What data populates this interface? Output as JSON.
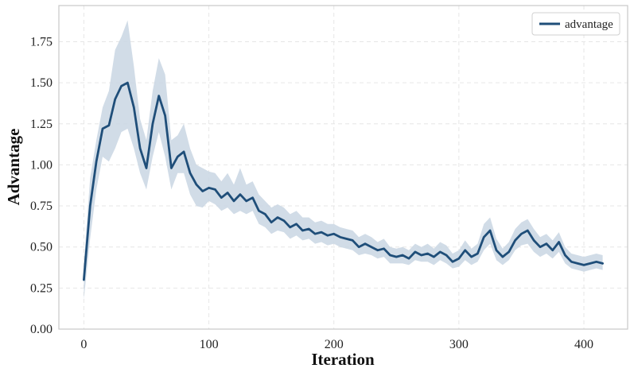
{
  "chart_data": {
    "type": "line",
    "xlabel": "Iteration",
    "ylabel": "Advantage",
    "xlim": [
      -20,
      435
    ],
    "ylim": [
      0,
      1.97
    ],
    "xticks": [
      0,
      100,
      200,
      300,
      400
    ],
    "yticks": [
      0.0,
      0.25,
      0.5,
      0.75,
      1.0,
      1.25,
      1.5,
      1.75
    ],
    "grid": true,
    "legend_position": "top-right",
    "colors": {
      "line": "#1f4e79",
      "band": "#c9d6e3"
    },
    "series": [
      {
        "name": "advantage",
        "x": [
          0,
          5,
          10,
          15,
          20,
          25,
          30,
          35,
          40,
          45,
          50,
          55,
          60,
          65,
          70,
          75,
          80,
          85,
          90,
          95,
          100,
          105,
          110,
          115,
          120,
          125,
          130,
          135,
          140,
          145,
          150,
          155,
          160,
          165,
          170,
          175,
          180,
          185,
          190,
          195,
          200,
          205,
          210,
          215,
          220,
          225,
          230,
          235,
          240,
          245,
          250,
          255,
          260,
          265,
          270,
          275,
          280,
          285,
          290,
          295,
          300,
          305,
          310,
          315,
          320,
          325,
          330,
          335,
          340,
          345,
          350,
          355,
          360,
          365,
          370,
          375,
          380,
          385,
          390,
          395,
          400,
          405,
          410,
          415
        ],
        "values": [
          0.3,
          0.75,
          1.02,
          1.22,
          1.24,
          1.4,
          1.48,
          1.5,
          1.35,
          1.1,
          0.98,
          1.25,
          1.42,
          1.3,
          0.98,
          1.05,
          1.08,
          0.95,
          0.88,
          0.84,
          0.86,
          0.85,
          0.8,
          0.83,
          0.78,
          0.82,
          0.78,
          0.8,
          0.72,
          0.7,
          0.65,
          0.68,
          0.66,
          0.62,
          0.64,
          0.6,
          0.61,
          0.58,
          0.59,
          0.57,
          0.58,
          0.56,
          0.55,
          0.54,
          0.5,
          0.52,
          0.5,
          0.48,
          0.49,
          0.45,
          0.44,
          0.45,
          0.43,
          0.47,
          0.45,
          0.46,
          0.44,
          0.47,
          0.45,
          0.41,
          0.43,
          0.48,
          0.44,
          0.46,
          0.56,
          0.6,
          0.48,
          0.44,
          0.47,
          0.54,
          0.58,
          0.6,
          0.54,
          0.5,
          0.52,
          0.48,
          0.53,
          0.45,
          0.41,
          0.4,
          0.39,
          0.4,
          0.41,
          0.4
        ],
        "lower": [
          0.18,
          0.55,
          0.85,
          1.05,
          1.02,
          1.1,
          1.2,
          1.22,
          1.1,
          0.95,
          0.85,
          1.05,
          1.2,
          1.05,
          0.85,
          0.95,
          0.95,
          0.82,
          0.75,
          0.74,
          0.78,
          0.76,
          0.72,
          0.74,
          0.7,
          0.72,
          0.7,
          0.72,
          0.64,
          0.62,
          0.58,
          0.6,
          0.59,
          0.55,
          0.57,
          0.54,
          0.55,
          0.52,
          0.53,
          0.51,
          0.52,
          0.5,
          0.49,
          0.48,
          0.45,
          0.46,
          0.45,
          0.43,
          0.44,
          0.4,
          0.4,
          0.4,
          0.39,
          0.42,
          0.41,
          0.41,
          0.39,
          0.42,
          0.4,
          0.37,
          0.38,
          0.42,
          0.39,
          0.41,
          0.48,
          0.52,
          0.42,
          0.39,
          0.42,
          0.48,
          0.51,
          0.52,
          0.47,
          0.44,
          0.46,
          0.43,
          0.47,
          0.4,
          0.37,
          0.36,
          0.35,
          0.36,
          0.37,
          0.36
        ],
        "upper": [
          0.4,
          0.92,
          1.15,
          1.35,
          1.45,
          1.7,
          1.78,
          1.88,
          1.6,
          1.28,
          1.15,
          1.45,
          1.65,
          1.55,
          1.15,
          1.18,
          1.25,
          1.1,
          1.0,
          0.98,
          0.96,
          0.95,
          0.9,
          0.95,
          0.88,
          0.98,
          0.88,
          0.9,
          0.82,
          0.78,
          0.74,
          0.76,
          0.74,
          0.7,
          0.72,
          0.68,
          0.68,
          0.65,
          0.66,
          0.64,
          0.64,
          0.62,
          0.61,
          0.6,
          0.56,
          0.58,
          0.56,
          0.53,
          0.55,
          0.5,
          0.49,
          0.5,
          0.48,
          0.52,
          0.5,
          0.52,
          0.49,
          0.53,
          0.51,
          0.46,
          0.48,
          0.54,
          0.49,
          0.52,
          0.64,
          0.68,
          0.55,
          0.49,
          0.53,
          0.61,
          0.65,
          0.67,
          0.61,
          0.56,
          0.58,
          0.54,
          0.59,
          0.5,
          0.46,
          0.45,
          0.44,
          0.45,
          0.46,
          0.45
        ]
      }
    ]
  }
}
